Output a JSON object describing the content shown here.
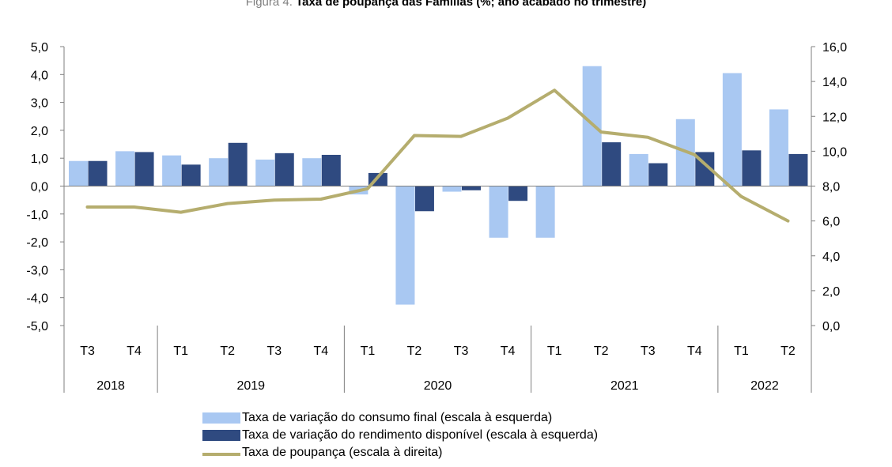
{
  "chart_data": {
    "type": "bar+line",
    "title_prefix": "Figura 4.",
    "title": "Taxa de poupança das Famílias (%; ano acabado no trimestre)",
    "categories": [
      "T3",
      "T4",
      "T1",
      "T2",
      "T3",
      "T4",
      "T1",
      "T2",
      "T3",
      "T4",
      "T1",
      "T2",
      "T3",
      "T4",
      "T1",
      "T2"
    ],
    "years": [
      {
        "label": "2018",
        "span": 2
      },
      {
        "label": "2019",
        "span": 4
      },
      {
        "label": "2020",
        "span": 4
      },
      {
        "label": "2021",
        "span": 4
      },
      {
        "label": "2022",
        "span": 2
      }
    ],
    "y_left": {
      "min": -5.0,
      "max": 5.0,
      "step": 1.0,
      "ticks": [
        "5,0",
        "4,0",
        "3,0",
        "2,0",
        "1,0",
        "0,0",
        "-1,0",
        "-2,0",
        "-3,0",
        "-4,0",
        "-5,0"
      ]
    },
    "y_right": {
      "min": 0.0,
      "max": 16.0,
      "step": 2.0,
      "ticks": [
        "16,0",
        "14,0",
        "12,0",
        "10,0",
        "8,0",
        "6,0",
        "4,0",
        "2,0",
        "0,0"
      ]
    },
    "series": [
      {
        "name": "Taxa de variação do consumo final (escala à esquerda)",
        "type": "bar",
        "axis": "left",
        "color": "#a9c8f2",
        "values": [
          0.9,
          1.25,
          1.1,
          1.0,
          0.95,
          1.0,
          -0.3,
          -4.25,
          -0.2,
          -1.85,
          -1.85,
          4.3,
          1.15,
          2.4,
          4.05,
          2.75
        ]
      },
      {
        "name": "Taxa de variação do rendimento disponível (escala à esquerda)",
        "type": "bar",
        "axis": "left",
        "color": "#2f4a80",
        "values": [
          0.9,
          1.22,
          0.77,
          1.55,
          1.18,
          1.12,
          0.47,
          -0.9,
          -0.15,
          -0.53,
          0.0,
          1.57,
          0.82,
          1.22,
          1.28,
          1.15
        ]
      },
      {
        "name": "Taxa de poupança (escala à direita)",
        "type": "line",
        "axis": "right",
        "color": "#b5ad6e",
        "values": [
          6.8,
          6.8,
          6.5,
          7.0,
          7.2,
          7.25,
          7.85,
          10.9,
          10.85,
          11.9,
          13.5,
          11.1,
          10.8,
          9.8,
          7.4,
          6.0
        ]
      }
    ]
  }
}
